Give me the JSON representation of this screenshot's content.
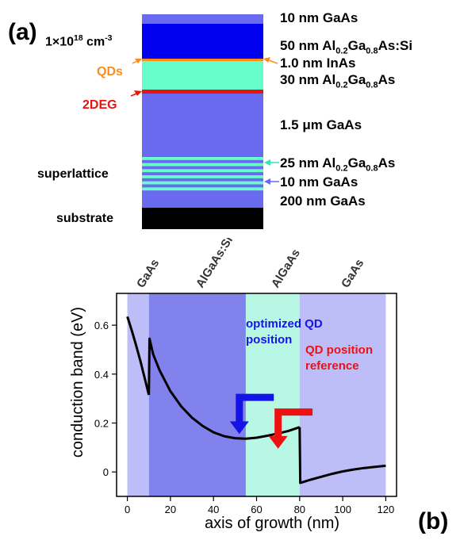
{
  "panel_a": {
    "label": "(a)",
    "doping": {
      "prefix": "1×10",
      "exp": "18",
      "unit": " cm",
      "unit_exp": "-3"
    },
    "side_labels": {
      "qds": "QDs",
      "twodeg": "2DEG",
      "superlattice": "superlattice",
      "substrate": "substrate"
    },
    "layers": [
      {
        "thickness": "10 nm",
        "material": "GaAs"
      },
      {
        "thickness": "50 nm",
        "material": "Al0.2Ga0.8As:Si"
      },
      {
        "thickness": "1.0 nm",
        "material": "InAs"
      },
      {
        "thickness": "30 nm",
        "material": "Al0.2Ga0.8As"
      },
      {
        "thickness": "1.5 μm",
        "material": "GaAs"
      },
      {
        "thickness": "25 nm",
        "material": "Al0.2Ga0.8As"
      },
      {
        "thickness": "10 nm",
        "material": "GaAs"
      },
      {
        "thickness": "200 nm",
        "material": "GaAs"
      }
    ],
    "colors": {
      "gaas": "#6a6af0",
      "algaas_si": "#0000ee",
      "algaas": "#66ffcc",
      "inas": "#ff8c1a",
      "twodeg": "#ee1111",
      "substrate": "#000000",
      "sl_arrow": "#33e6b3",
      "gaas_arrow": "#6a6af0"
    }
  },
  "chart_data": {
    "type": "line",
    "panel_label": "(b)",
    "xlabel": "axis of growth (nm)",
    "ylabel": "conduction band (eV)",
    "xlim": [
      -5,
      125
    ],
    "ylim": [
      -0.1,
      0.73
    ],
    "xticks": [
      0,
      20,
      40,
      60,
      80,
      100,
      120
    ],
    "yticks": [
      0.0,
      0.2,
      0.4,
      0.6
    ],
    "regions": [
      {
        "name": "GaAs",
        "x": [
          0,
          10
        ],
        "color": "#bdbdf7"
      },
      {
        "name": "AlGaAs:Si",
        "x": [
          10,
          55
        ],
        "color": "#8282ec"
      },
      {
        "name": "AlGaAs",
        "x": [
          55,
          80
        ],
        "color": "#b8f7e4"
      },
      {
        "name": "GaAs",
        "x": [
          80,
          120
        ],
        "color": "#bdbdf7"
      }
    ],
    "series": [
      {
        "name": "",
        "color": "#000000",
        "segments": [
          {
            "x": [
              0,
              2,
              4,
              6,
              8,
              10
            ],
            "y": [
              0.635,
              0.58,
              0.52,
              0.455,
              0.385,
              0.315
            ]
          },
          {
            "x": [
              10,
              10.3,
              12,
              15,
              20,
              25,
              30,
              35,
              40,
              45,
              50,
              55,
              60,
              65,
              70,
              75,
              80
            ],
            "y": [
              0.315,
              0.545,
              0.48,
              0.415,
              0.33,
              0.268,
              0.222,
              0.188,
              0.162,
              0.146,
              0.138,
              0.136,
              0.14,
              0.148,
              0.157,
              0.168,
              0.183
            ]
          },
          {
            "x": [
              80,
              80.3,
              85,
              90,
              95,
              100,
              105,
              110,
              115,
              120
            ],
            "y": [
              0.183,
              -0.045,
              -0.032,
              -0.02,
              -0.008,
              0.002,
              0.01,
              0.016,
              0.021,
              0.025
            ]
          }
        ]
      }
    ],
    "annotations": [
      {
        "text_lines": [
          "optimized QD",
          "position"
        ],
        "color": "#1414e6",
        "arrow_corner": [
          68,
          0.305
        ],
        "arrow_tip": [
          52,
          0.155
        ]
      },
      {
        "text_lines": [
          "QD position",
          "reference"
        ],
        "color": "#ee1111",
        "arrow_corner": [
          86,
          0.245
        ],
        "arrow_tip": [
          70,
          0.095
        ]
      }
    ]
  }
}
